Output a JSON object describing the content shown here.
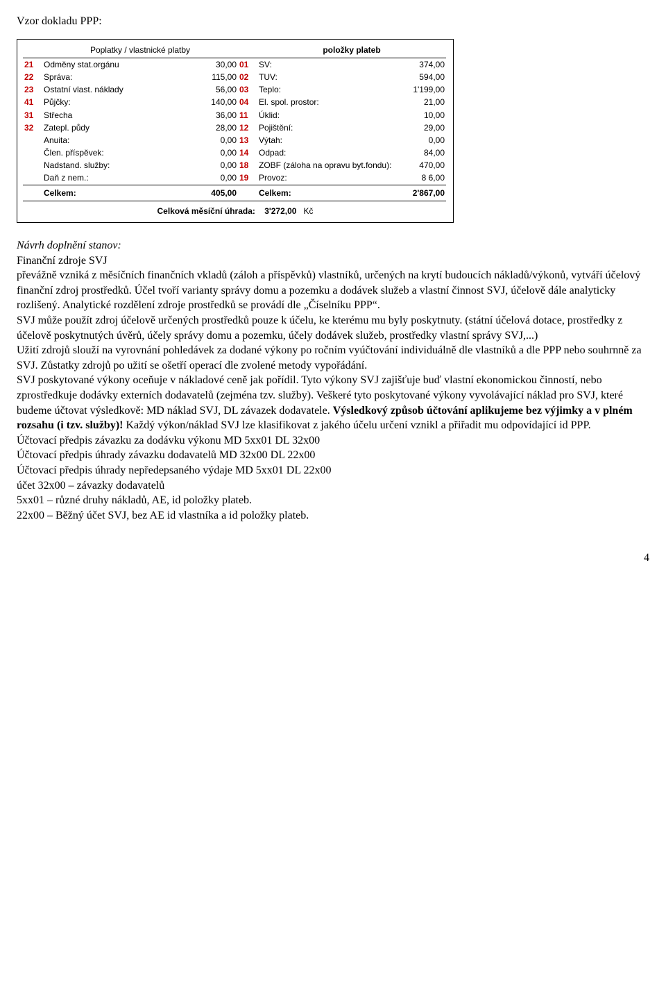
{
  "heading": "Vzor dokladu PPP:",
  "doc": {
    "left": {
      "header": "Poplatky / vlastnické platby",
      "rows": [
        {
          "code": "21",
          "label": "Odměny stat.orgánu",
          "value": "30,00"
        },
        {
          "code": "22",
          "label": "Správa:",
          "value": "115,00"
        },
        {
          "code": "23",
          "label": "Ostatní vlast. náklady",
          "value": "56,00"
        },
        {
          "code": "41",
          "label": "Půjčky:",
          "value": "140,00"
        },
        {
          "code": "31",
          "label": "Střecha",
          "value": "36,00"
        },
        {
          "code": "32",
          "label": "Zatepl. půdy",
          "value": "28,00"
        },
        {
          "code": "",
          "label": "Anuita:",
          "value": "0,00"
        },
        {
          "code": "",
          "label": "Člen. příspěvek:",
          "value": "0,00"
        },
        {
          "code": "",
          "label": "Nadstand. služby:",
          "value": "0,00"
        },
        {
          "code": "",
          "label": "Daň z nem.:",
          "value": "0,00"
        }
      ],
      "sum_label": "Celkem:",
      "sum_value": "405,00"
    },
    "right": {
      "header": "položky plateb",
      "rows": [
        {
          "code": "01",
          "label": "SV:",
          "value": "374,00"
        },
        {
          "code": "02",
          "label": "TUV:",
          "value": "594,00"
        },
        {
          "code": "03",
          "label": "Teplo:",
          "value": "1'199,00"
        },
        {
          "code": "04",
          "label": "El. spol. prostor:",
          "value": "21,00"
        },
        {
          "code": "11",
          "label": "Úklid:",
          "value": "10,00"
        },
        {
          "code": "12",
          "label": "Pojištění:",
          "value": "29,00"
        },
        {
          "code": "13",
          "label": "Výtah:",
          "value": "0,00"
        },
        {
          "code": "14",
          "label": "Odpad:",
          "value": "84,00"
        },
        {
          "code": "18",
          "label": "ZOBF (záloha na opravu byt.fondu):",
          "value": "470,00"
        },
        {
          "code": "19",
          "label": "Provoz:",
          "value": "8 6,00"
        }
      ],
      "sum_label": "Celkem:",
      "sum_value": "2'867,00"
    },
    "total_label": "Celková měsíční úhrada:",
    "total_value": "3'272,00",
    "total_currency": "Kč"
  },
  "body": {
    "p1_italic": "Návrh doplnění stanov:",
    "p2": "Finanční zdroje SVJ",
    "p3": "převážně vzniká z měsíčních finančních vkladů (záloh a příspěvků) vlastníků, určených na krytí budoucích nákladů/výkonů, vytváří účelový finanční zdroj prostředků. Účel tvoří varianty  správy domu a pozemku a dodávek služeb a vlastní činnost SVJ, účelově dále analyticky rozlišený. Analytické rozdělení zdroje prostředků se provádí dle „Číselníku PPP“.",
    "p4": "SVJ může použít zdroj účelově určených prostředků pouze k účelu, ke kterému mu byly poskytnuty. (státní účelová dotace, prostředky z účelově poskytnutých úvěrů, účely správy domu a pozemku, účely dodávek služeb, prostředky vlastní správy SVJ,...)",
    "p5": "Užití zdrojů slouží na vyrovnání pohledávek za dodané výkony po ročním vyúčtování individuálně dle vlastníků a dle PPP nebo souhrnně za SVJ. Zůstatky zdrojů po užití se ošetří operací dle zvolené metody vypořádání.",
    "p6a": "SVJ poskytované výkony oceňuje v nákladové ceně jak pořídil. Tyto výkony SVJ zajišťuje buď vlastní ekonomickou činností, nebo zprostředkuje dodávky externích dodavatelů (zejména tzv. služby). Veškeré tyto poskytované výkony vyvolávající náklad pro SVJ, které budeme účtovat výsledkově: MD náklad SVJ, DL závazek dodavatele. ",
    "p6b_bold": "Výsledkový způsob účtování aplikujeme bez výjimky a v plném rozsahu (i tzv. služby)!",
    "p6c": " Každý výkon/náklad SVJ lze klasifikovat z jakého účelu určení vznikl a přiřadit mu odpovídající id PPP.",
    "p7": "Účtovací předpis závazku za dodávku výkonu MD 5xx01 DL 32x00",
    "p8": "Účtovací předpis úhrady závazku dodavatelů MD 32x00 DL 22x00",
    "p9": "Účtovací předpis úhrady nepředepsaného výdaje MD 5xx01 DL 22x00",
    "p10": "účet 32x00 – závazky dodavatelů",
    "p11": " 5xx01 – různé druhy nákladů, AE, id položky plateb.",
    "p12": " 22x00 – Běžný účet SVJ, bez AE id vlastníka a id položky plateb."
  },
  "page_number": "4"
}
